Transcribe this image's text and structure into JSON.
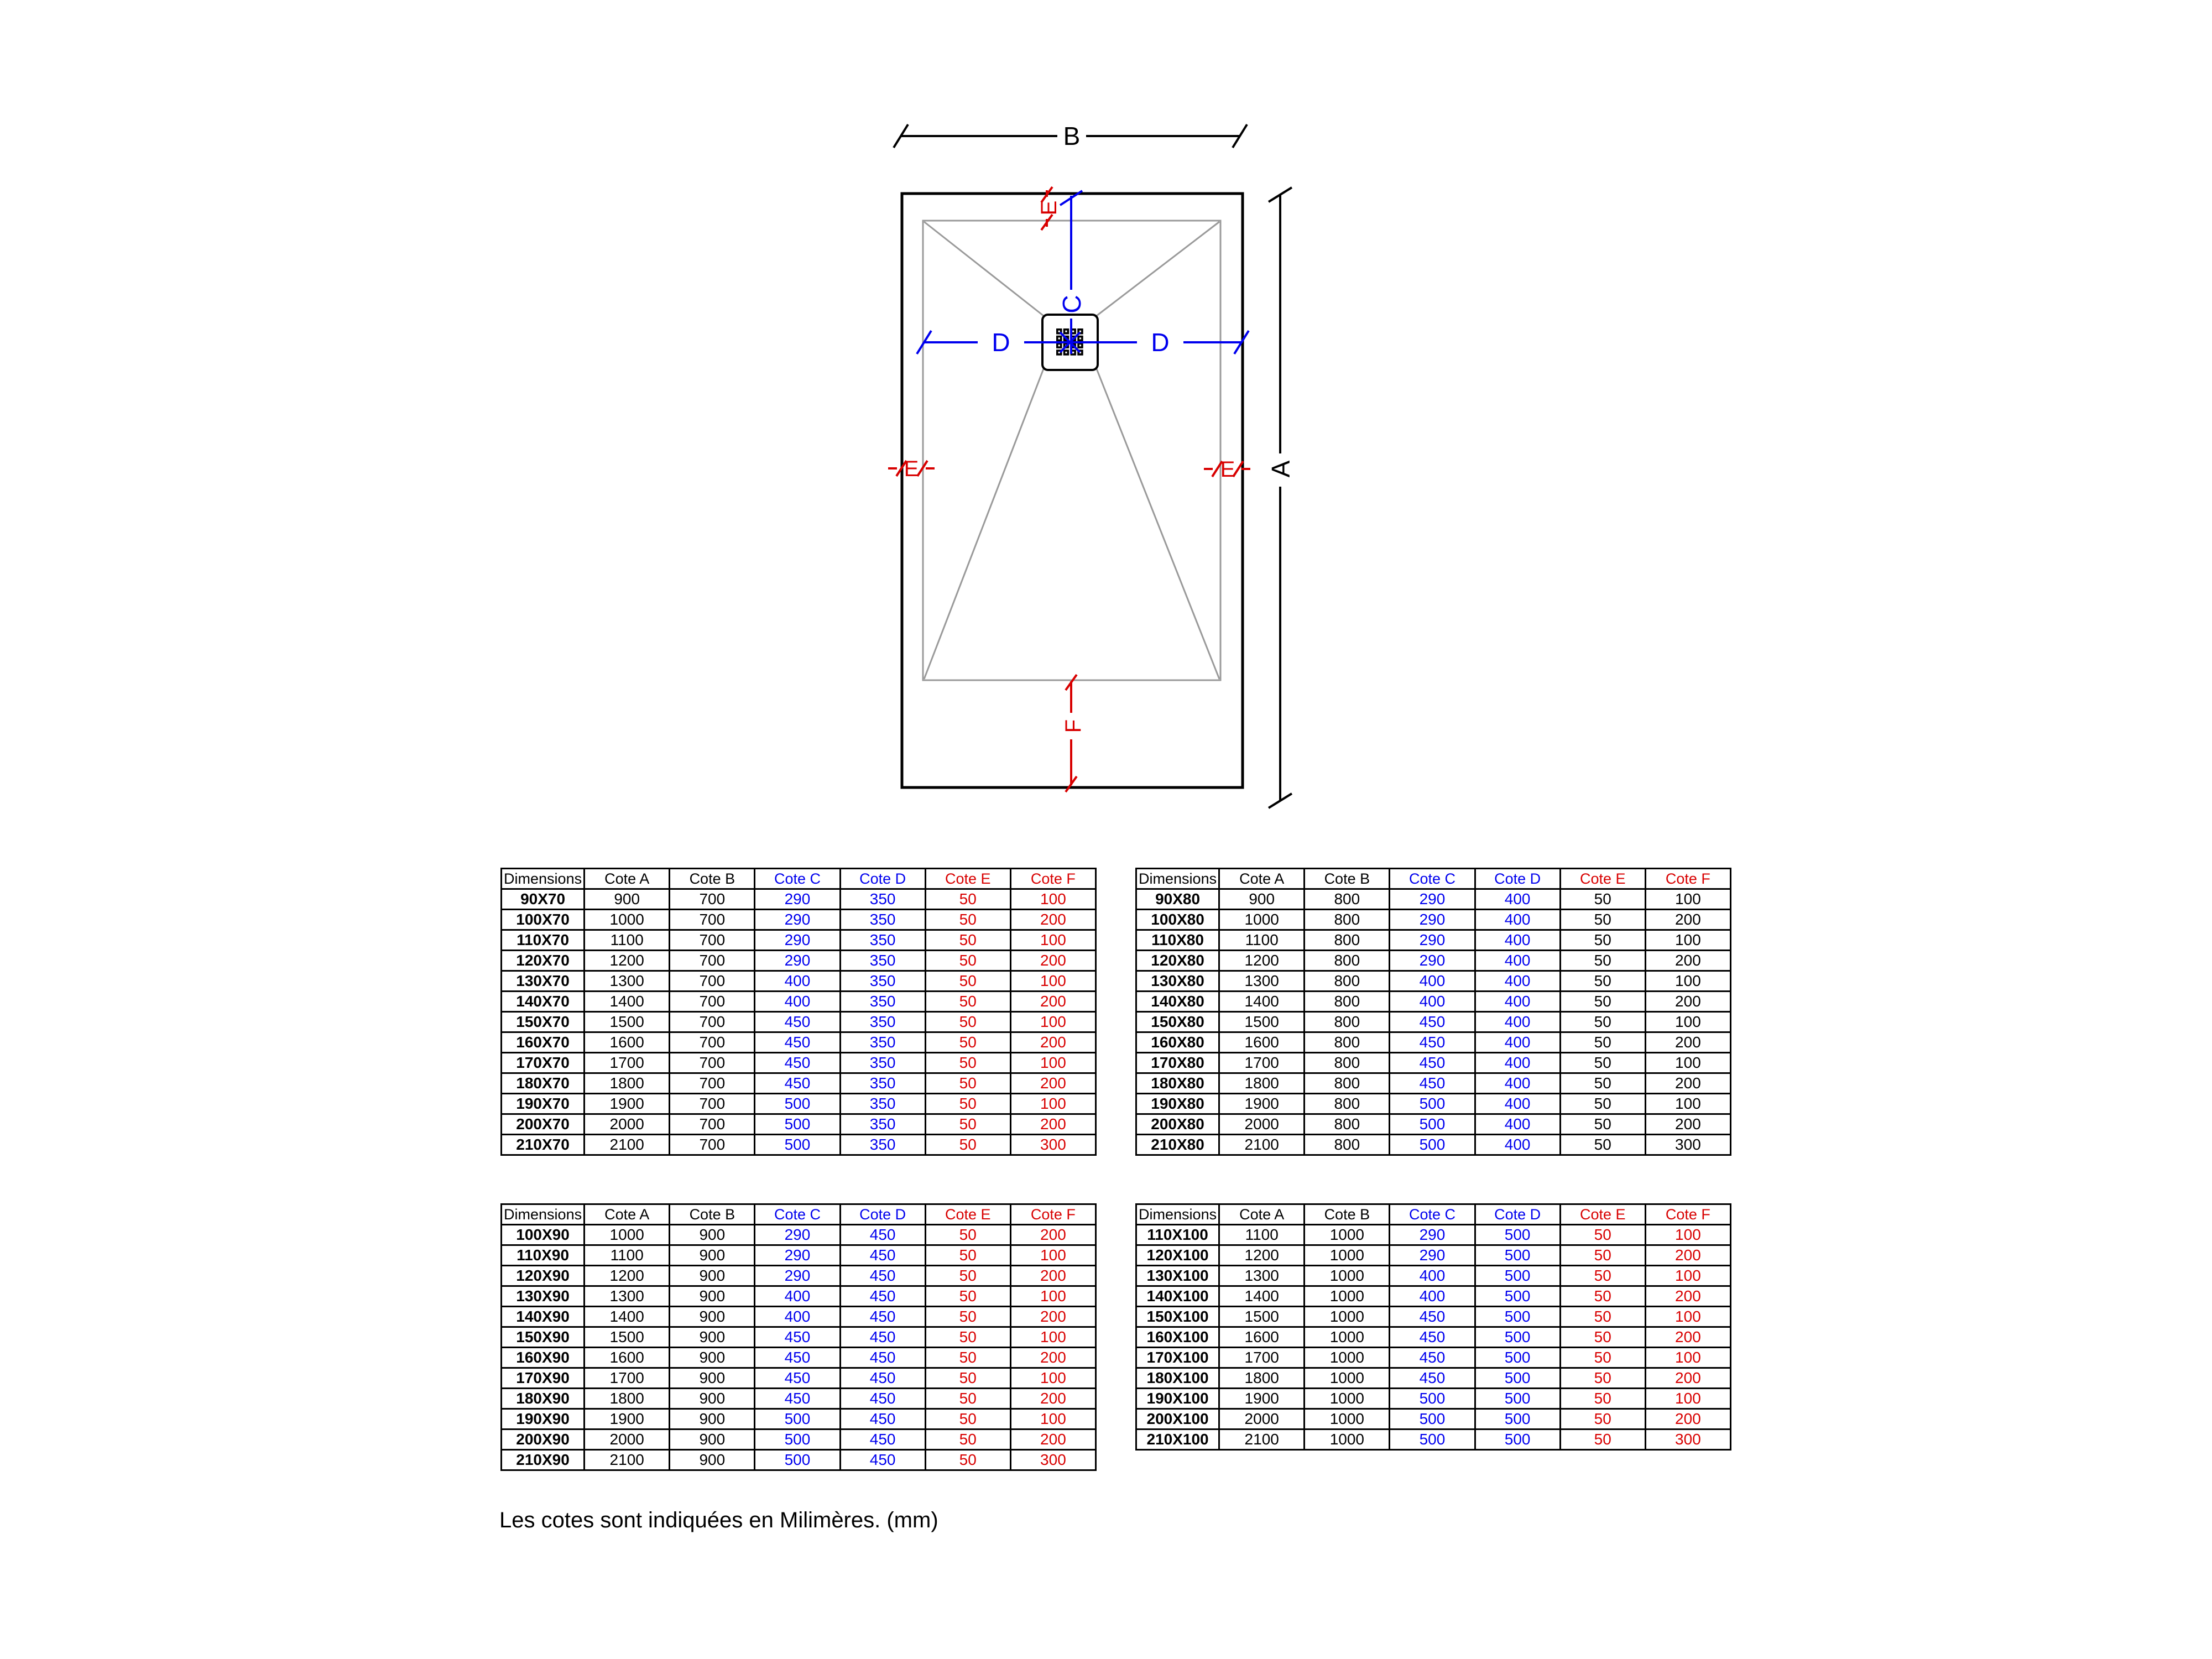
{
  "page": {
    "background": "#FFFFFF",
    "footer_note": "Les cotes sont indiquées en Milimères. (mm)"
  },
  "diagram": {
    "labels": {
      "a": "A",
      "b": "B",
      "c": "C",
      "d_left": "D",
      "d_right": "D",
      "e_top": "E",
      "e_left": "E",
      "e_right": "E",
      "f": "F"
    },
    "colors": {
      "outline_black": "#000000",
      "secondary_gray": "#9A9A9A",
      "cd_blue": "#0000EE",
      "ef_red": "#D80000"
    }
  },
  "tables": {
    "headers": [
      "Dimensions",
      "Cote A",
      "Cote B",
      "Cote C",
      "Cote D",
      "Cote E",
      "Cote F"
    ],
    "header_colors": [
      "black",
      "black",
      "black",
      "blue",
      "blue",
      "red",
      "red"
    ],
    "groups": [
      {
        "id": "70",
        "ef_value_color": "red",
        "rows": [
          [
            "90X70",
            "900",
            "700",
            "290",
            "350",
            "50",
            "100"
          ],
          [
            "100X70",
            "1000",
            "700",
            "290",
            "350",
            "50",
            "200"
          ],
          [
            "110X70",
            "1100",
            "700",
            "290",
            "350",
            "50",
            "100"
          ],
          [
            "120X70",
            "1200",
            "700",
            "290",
            "350",
            "50",
            "200"
          ],
          [
            "130X70",
            "1300",
            "700",
            "400",
            "350",
            "50",
            "100"
          ],
          [
            "140X70",
            "1400",
            "700",
            "400",
            "350",
            "50",
            "200"
          ],
          [
            "150X70",
            "1500",
            "700",
            "450",
            "350",
            "50",
            "100"
          ],
          [
            "160X70",
            "1600",
            "700",
            "450",
            "350",
            "50",
            "200"
          ],
          [
            "170X70",
            "1700",
            "700",
            "450",
            "350",
            "50",
            "100"
          ],
          [
            "180X70",
            "1800",
            "700",
            "450",
            "350",
            "50",
            "200"
          ],
          [
            "190X70",
            "1900",
            "700",
            "500",
            "350",
            "50",
            "100"
          ],
          [
            "200X70",
            "2000",
            "700",
            "500",
            "350",
            "50",
            "200"
          ],
          [
            "210X70",
            "2100",
            "700",
            "500",
            "350",
            "50",
            "300"
          ]
        ]
      },
      {
        "id": "80",
        "ef_value_color": "black",
        "rows": [
          [
            "90X80",
            "900",
            "800",
            "290",
            "400",
            "50",
            "100"
          ],
          [
            "100X80",
            "1000",
            "800",
            "290",
            "400",
            "50",
            "200"
          ],
          [
            "110X80",
            "1100",
            "800",
            "290",
            "400",
            "50",
            "100"
          ],
          [
            "120X80",
            "1200",
            "800",
            "290",
            "400",
            "50",
            "200"
          ],
          [
            "130X80",
            "1300",
            "800",
            "400",
            "400",
            "50",
            "100"
          ],
          [
            "140X80",
            "1400",
            "800",
            "400",
            "400",
            "50",
            "200"
          ],
          [
            "150X80",
            "1500",
            "800",
            "450",
            "400",
            "50",
            "100"
          ],
          [
            "160X80",
            "1600",
            "800",
            "450",
            "400",
            "50",
            "200"
          ],
          [
            "170X80",
            "1700",
            "800",
            "450",
            "400",
            "50",
            "100"
          ],
          [
            "180X80",
            "1800",
            "800",
            "450",
            "400",
            "50",
            "200"
          ],
          [
            "190X80",
            "1900",
            "800",
            "500",
            "400",
            "50",
            "100"
          ],
          [
            "200X80",
            "2000",
            "800",
            "500",
            "400",
            "50",
            "200"
          ],
          [
            "210X80",
            "2100",
            "800",
            "500",
            "400",
            "50",
            "300"
          ]
        ]
      },
      {
        "id": "90",
        "ef_value_color": "red",
        "rows": [
          [
            "100X90",
            "1000",
            "900",
            "290",
            "450",
            "50",
            "200"
          ],
          [
            "110X90",
            "1100",
            "900",
            "290",
            "450",
            "50",
            "100"
          ],
          [
            "120X90",
            "1200",
            "900",
            "290",
            "450",
            "50",
            "200"
          ],
          [
            "130X90",
            "1300",
            "900",
            "400",
            "450",
            "50",
            "100"
          ],
          [
            "140X90",
            "1400",
            "900",
            "400",
            "450",
            "50",
            "200"
          ],
          [
            "150X90",
            "1500",
            "900",
            "450",
            "450",
            "50",
            "100"
          ],
          [
            "160X90",
            "1600",
            "900",
            "450",
            "450",
            "50",
            "200"
          ],
          [
            "170X90",
            "1700",
            "900",
            "450",
            "450",
            "50",
            "100"
          ],
          [
            "180X90",
            "1800",
            "900",
            "450",
            "450",
            "50",
            "200"
          ],
          [
            "190X90",
            "1900",
            "900",
            "500",
            "450",
            "50",
            "100"
          ],
          [
            "200X90",
            "2000",
            "900",
            "500",
            "450",
            "50",
            "200"
          ],
          [
            "210X90",
            "2100",
            "900",
            "500",
            "450",
            "50",
            "300"
          ]
        ]
      },
      {
        "id": "100",
        "ef_value_color": "red",
        "rows": [
          [
            "110X100",
            "1100",
            "1000",
            "290",
            "500",
            "50",
            "100"
          ],
          [
            "120X100",
            "1200",
            "1000",
            "290",
            "500",
            "50",
            "200"
          ],
          [
            "130X100",
            "1300",
            "1000",
            "400",
            "500",
            "50",
            "100"
          ],
          [
            "140X100",
            "1400",
            "1000",
            "400",
            "500",
            "50",
            "200"
          ],
          [
            "150X100",
            "1500",
            "1000",
            "450",
            "500",
            "50",
            "100"
          ],
          [
            "160X100",
            "1600",
            "1000",
            "450",
            "500",
            "50",
            "200"
          ],
          [
            "170X100",
            "1700",
            "1000",
            "450",
            "500",
            "50",
            "100"
          ],
          [
            "180X100",
            "1800",
            "1000",
            "450",
            "500",
            "50",
            "200"
          ],
          [
            "190X100",
            "1900",
            "1000",
            "500",
            "500",
            "50",
            "100"
          ],
          [
            "200X100",
            "2000",
            "1000",
            "500",
            "500",
            "50",
            "200"
          ],
          [
            "210X100",
            "2100",
            "1000",
            "500",
            "500",
            "50",
            "300"
          ]
        ]
      }
    ]
  }
}
